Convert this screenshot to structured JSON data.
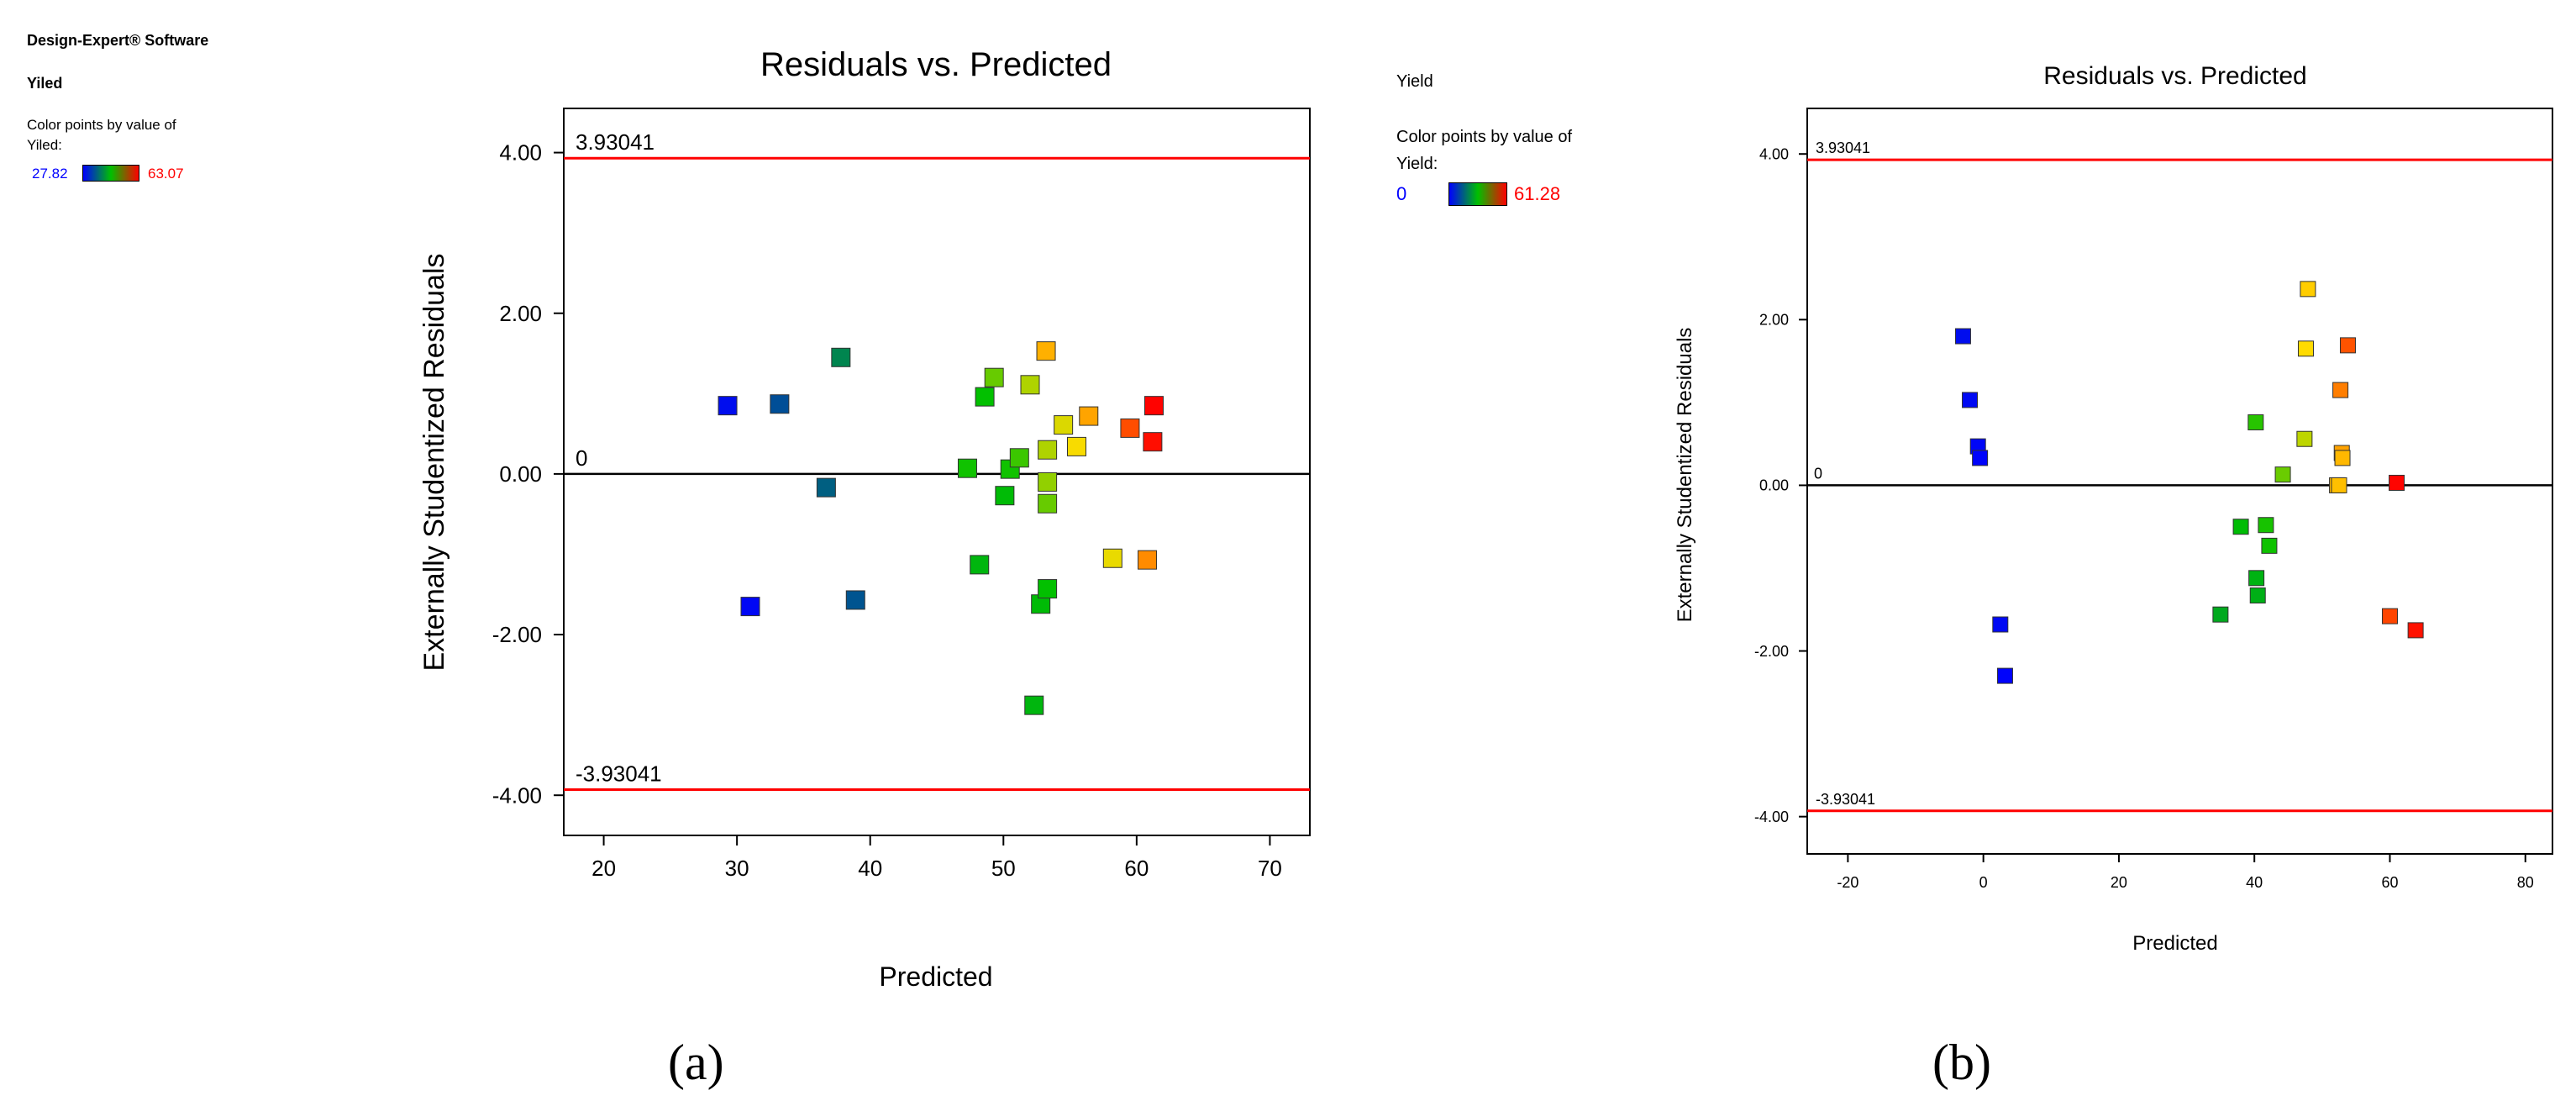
{
  "left_panel": {
    "software": "Design-Expert® Software",
    "response": "Yiled",
    "color_desc_line1": "Color points by value of",
    "color_desc_line2": "Yiled:",
    "color_min": "27.82",
    "color_max": "63.07"
  },
  "right_panel": {
    "response": "Yield",
    "color_desc_line1": "Color points by value of",
    "color_desc_line2": "Yield:",
    "color_min": "0",
    "color_max": "61.28"
  },
  "captions": {
    "a": "(a)",
    "b": "(b)"
  },
  "colors": {
    "low": "#0000ff",
    "mid": "#00c000",
    "high": "#ff0000",
    "limit_line": "#ff0000"
  },
  "chart_data": [
    {
      "id": "a",
      "type": "scatter",
      "title": "Residuals vs. Predicted",
      "xlabel": "Predicted",
      "ylabel": "Externally Studentized Residuals",
      "xlim": [
        17,
        73
      ],
      "ylim": [
        -4.5,
        4.55
      ],
      "xticks": [
        20,
        30,
        40,
        50,
        60,
        70
      ],
      "yticks": [
        -4,
        -2,
        0,
        2,
        4
      ],
      "ytick_labels": [
        "-4.00",
        "-2.00",
        "0.00",
        "2.00",
        "4.00"
      ],
      "upper_limit": 3.93041,
      "upper_label": "3.93041",
      "lower_limit": -3.93041,
      "lower_label": "-3.93041",
      "zero_label": "0",
      "color_range": [
        27.82,
        63.07
      ],
      "points": [
        {
          "x": 29.3,
          "y": 0.85,
          "c": 29.0
        },
        {
          "x": 31.0,
          "y": -1.65,
          "c": 28.5
        },
        {
          "x": 33.2,
          "y": 0.87,
          "c": 35.0
        },
        {
          "x": 36.7,
          "y": -0.17,
          "c": 36.5
        },
        {
          "x": 37.8,
          "y": 1.45,
          "c": 40.0
        },
        {
          "x": 38.9,
          "y": -1.57,
          "c": 35.5
        },
        {
          "x": 47.3,
          "y": 0.07,
          "c": 46.0
        },
        {
          "x": 48.2,
          "y": -1.13,
          "c": 44.5
        },
        {
          "x": 48.6,
          "y": 0.96,
          "c": 45.5
        },
        {
          "x": 49.3,
          "y": 1.2,
          "c": 49.0
        },
        {
          "x": 50.1,
          "y": -0.27,
          "c": 45.0
        },
        {
          "x": 50.5,
          "y": 0.06,
          "c": 46.0
        },
        {
          "x": 51.2,
          "y": 0.2,
          "c": 47.5
        },
        {
          "x": 52.0,
          "y": 1.11,
          "c": 51.5
        },
        {
          "x": 52.3,
          "y": -2.88,
          "c": 44.5
        },
        {
          "x": 52.8,
          "y": -1.62,
          "c": 45.0
        },
        {
          "x": 53.2,
          "y": 1.53,
          "c": 56.0
        },
        {
          "x": 53.3,
          "y": -1.43,
          "c": 45.5
        },
        {
          "x": 53.3,
          "y": 0.3,
          "c": 51.5
        },
        {
          "x": 53.3,
          "y": -0.1,
          "c": 50.5
        },
        {
          "x": 53.3,
          "y": -0.37,
          "c": 49.0
        },
        {
          "x": 54.5,
          "y": 0.61,
          "c": 53.0
        },
        {
          "x": 55.5,
          "y": 0.34,
          "c": 54.0
        },
        {
          "x": 56.4,
          "y": 0.72,
          "c": 56.5
        },
        {
          "x": 58.2,
          "y": -1.05,
          "c": 53.5
        },
        {
          "x": 59.5,
          "y": 0.57,
          "c": 60.0
        },
        {
          "x": 60.8,
          "y": -1.07,
          "c": 57.5
        },
        {
          "x": 61.2,
          "y": 0.4,
          "c": 62.5
        },
        {
          "x": 61.3,
          "y": 0.85,
          "c": 63.0
        }
      ]
    },
    {
      "id": "b",
      "type": "scatter",
      "title": "Residuals vs. Predicted",
      "xlabel": "Predicted",
      "ylabel": "Externally Studentized Residuals",
      "xlim": [
        -26,
        84
      ],
      "ylim": [
        -4.45,
        4.55
      ],
      "xticks": [
        -20,
        0,
        20,
        40,
        60,
        80
      ],
      "yticks": [
        -4,
        -2,
        0,
        2,
        4
      ],
      "ytick_labels": [
        "-4.00",
        "-2.00",
        "0.00",
        "2.00",
        "4.00"
      ],
      "upper_limit": 3.93041,
      "upper_label": "3.93041",
      "lower_limit": -3.93041,
      "lower_label": "-3.93041",
      "zero_label": "0",
      "color_range": [
        0,
        61.28
      ],
      "points": [
        {
          "x": -3.0,
          "y": 1.8,
          "c": 2.0
        },
        {
          "x": -2.0,
          "y": 1.03,
          "c": 1.5
        },
        {
          "x": -0.8,
          "y": 0.47,
          "c": 1.0
        },
        {
          "x": -0.5,
          "y": 0.33,
          "c": 0.5
        },
        {
          "x": 2.5,
          "y": -1.68,
          "c": 1.5
        },
        {
          "x": 3.2,
          "y": -2.3,
          "c": 0.5
        },
        {
          "x": 35.0,
          "y": -1.56,
          "c": 27.0
        },
        {
          "x": 38.0,
          "y": -0.5,
          "c": 30.0
        },
        {
          "x": 40.2,
          "y": 0.76,
          "c": 33.0
        },
        {
          "x": 40.3,
          "y": -1.12,
          "c": 28.5
        },
        {
          "x": 40.5,
          "y": -1.33,
          "c": 28.0
        },
        {
          "x": 41.7,
          "y": -0.48,
          "c": 32.0
        },
        {
          "x": 42.2,
          "y": -0.73,
          "c": 31.5
        },
        {
          "x": 44.2,
          "y": 0.13,
          "c": 37.0
        },
        {
          "x": 47.4,
          "y": 0.56,
          "c": 42.0
        },
        {
          "x": 47.6,
          "y": 1.65,
          "c": 46.0
        },
        {
          "x": 47.9,
          "y": 2.37,
          "c": 47.0
        },
        {
          "x": 52.2,
          "y": 0.0,
          "c": 48.5
        },
        {
          "x": 52.5,
          "y": 0.0,
          "c": 48.0
        },
        {
          "x": 52.7,
          "y": 1.15,
          "c": 52.5
        },
        {
          "x": 52.9,
          "y": 0.39,
          "c": 50.0
        },
        {
          "x": 53.0,
          "y": 0.33,
          "c": 48.5
        },
        {
          "x": 53.8,
          "y": 1.69,
          "c": 55.5
        },
        {
          "x": 60.0,
          "y": -1.58,
          "c": 56.5
        },
        {
          "x": 61.0,
          "y": 0.03,
          "c": 61.0
        },
        {
          "x": 63.8,
          "y": -1.75,
          "c": 60.0
        }
      ]
    }
  ]
}
